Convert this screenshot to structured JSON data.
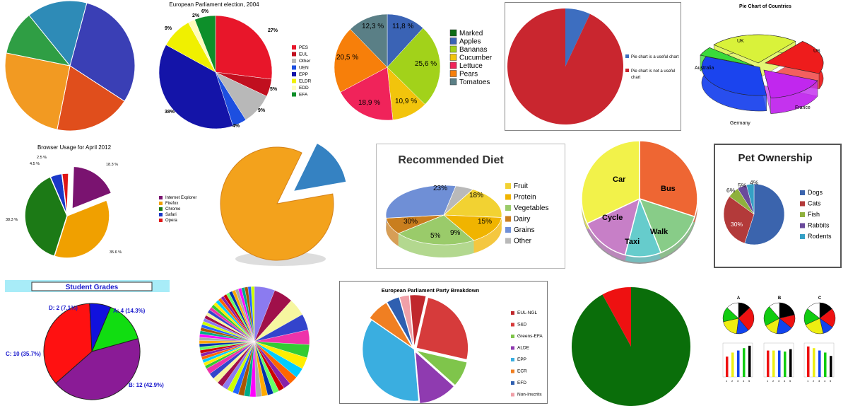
{
  "colors": {
    "red": "#e11f26",
    "darkred": "#c0282d",
    "blue": "#1f33c7",
    "green": "#0a7a1a",
    "yellow": "#ffff00",
    "grey": "#b5b5b5",
    "orange": "#f79820"
  },
  "chart_data": [
    {
      "id": "p1",
      "type": "pie",
      "title": "",
      "values": [
        30,
        19,
        25,
        11,
        15
      ],
      "colors": [
        "#3a3fb5",
        "#e04e1c",
        "#f29a22",
        "#2f9e44",
        "#2e8bb7"
      ],
      "categories": [
        "",
        "",
        "",
        "",
        ""
      ]
    },
    {
      "id": "p2",
      "type": "pie",
      "title": "European Parliament election, 2004",
      "categories": [
        "PES",
        "EUL",
        "Other",
        "UEN",
        "EPP",
        "ELDR",
        "EDD",
        "EFA"
      ],
      "values": [
        27,
        5,
        9,
        4,
        38,
        9,
        2,
        6
      ],
      "data_labels": [
        "27%",
        "5%",
        "9%",
        "4%",
        "38%",
        "9%",
        "2%",
        "6%"
      ],
      "colors": [
        "#e8162a",
        "#c10f1f",
        "#b8b8b8",
        "#1d4fe0",
        "#1414a8",
        "#f0f000",
        "#fffcbb",
        "#0d8f2a"
      ]
    },
    {
      "id": "p3",
      "type": "pie",
      "title": "",
      "categories": [
        "Marked",
        "Apples",
        "Bananas",
        "Cucumber",
        "Lettuce",
        "Pears",
        "Tomatoes"
      ],
      "values": [
        0,
        11.8,
        25.6,
        10.9,
        18.9,
        20.5,
        12.3
      ],
      "data_labels": [
        "",
        "11,8 %",
        "25,6 %",
        "10,9 %",
        "18,9 %",
        "20,5 %",
        "12,3 %"
      ],
      "colors": [
        "#0c6b14",
        "#3a63b5",
        "#a2d21a",
        "#f2c40c",
        "#f0235a",
        "#f77f0a",
        "#5a7f86"
      ]
    },
    {
      "id": "p4",
      "type": "pie",
      "title": "",
      "categories": [
        "Pie chart is a useful chart",
        "Pie chart is not a useful chart"
      ],
      "values": [
        7,
        93
      ],
      "colors": [
        "#3d6ec0",
        "#c9262f"
      ]
    },
    {
      "id": "p5",
      "type": "pie",
      "title": "Pie Chart of Countries",
      "categories": [
        "US",
        "France",
        "Germany",
        "Australia",
        "UK"
      ],
      "values": [
        20,
        17,
        33,
        5,
        25
      ],
      "colors": [
        "#ee1c1c",
        "#c127ee",
        "#1b44ee",
        "#3ada3a",
        "#d9f23a"
      ]
    },
    {
      "id": "p6",
      "type": "pie",
      "title": "Browser Usage for April 2012",
      "categories": [
        "Internet Explorer",
        "Firefox",
        "Chrome",
        "Safari",
        "Opera"
      ],
      "values": [
        18.3,
        35.6,
        38.3,
        4.5,
        2.5
      ],
      "data_labels": [
        "18.3 %",
        "35.6 %",
        "38.3 %",
        "4.5 %",
        "2.5 %"
      ],
      "colors": [
        "#7a1370",
        "#f0a000",
        "#1c7a16",
        "#1a38c8",
        "#e01515"
      ]
    },
    {
      "id": "p7",
      "type": "pie",
      "title": "",
      "values": [
        85,
        15
      ],
      "colors": [
        "#f3a21c",
        "#3582c2"
      ],
      "categories": [
        "",
        ""
      ]
    },
    {
      "id": "p8",
      "type": "pie",
      "title": "Recommended Diet",
      "categories": [
        "Fruit",
        "Protein",
        "Vegetables",
        "Dairy",
        "Grains",
        "Other"
      ],
      "values": [
        18,
        15,
        23,
        9,
        30,
        5
      ],
      "data_labels": [
        "18%",
        "15%",
        "23%",
        "9%",
        "30%",
        "5%"
      ],
      "colors": [
        "#f2d232",
        "#f0b400",
        "#9acb6a",
        "#c97e1e",
        "#6f8fd6",
        "#b9b9b9"
      ]
    },
    {
      "id": "p9",
      "type": "pie",
      "title": "",
      "categories": [
        "Bus",
        "Walk",
        "Taxi",
        "Cycle",
        "Car"
      ],
      "values": [
        30,
        14,
        10,
        14,
        32
      ],
      "data_labels": [
        "Bus",
        "Walk",
        "Taxi",
        "Cycle",
        "Car"
      ],
      "colors": [
        "#ee6633",
        "#88cc88",
        "#66cccc",
        "#c77fc7",
        "#f2f24a"
      ]
    },
    {
      "id": "p10",
      "type": "pie",
      "title": "Pet Ownership",
      "categories": [
        "Dogs",
        "Cats",
        "Fish",
        "Rabbits",
        "Rodents"
      ],
      "values": [
        55,
        30,
        6,
        5,
        4
      ],
      "data_labels": [
        "55%",
        "30%",
        "6%",
        "5%",
        "4%"
      ],
      "colors": [
        "#3b64ad",
        "#b33a3a",
        "#8fb13d",
        "#6a4a9b",
        "#35a0c5"
      ]
    },
    {
      "id": "p11",
      "type": "pie",
      "title": "Student Grades",
      "categories": [
        "A",
        "B",
        "C",
        "D"
      ],
      "values": [
        4,
        12,
        10,
        2
      ],
      "data_labels": [
        "A: 4  (14.3%)",
        "B: 12  (42.9%)",
        "C: 10  (35.7%)",
        "D: 2  (7.1%)"
      ],
      "colors": [
        "#11dd11",
        "#8a1b96",
        "#ff1111",
        "#1111dd"
      ]
    },
    {
      "id": "p12",
      "type": "pie",
      "title": "",
      "categories": [],
      "values": [],
      "slice_count": 60
    },
    {
      "id": "p13",
      "type": "pie",
      "title": "European Parliament Party Breakdown",
      "categories": [
        "EUL-NGL",
        "S&D",
        "Greens-EFA",
        "ALDE",
        "EPP",
        "ECR",
        "EFD",
        "Non-Inscrits"
      ],
      "values": [
        5,
        25,
        8,
        12,
        36,
        7,
        4,
        3
      ],
      "colors": [
        "#c0282d",
        "#d63b3b",
        "#7fc54b",
        "#8f3bb0",
        "#3aaee0",
        "#f07f22",
        "#2f5fb0",
        "#f0a0a8"
      ]
    },
    {
      "id": "p14",
      "type": "pie",
      "title": "",
      "values": [
        92,
        8
      ],
      "colors": [
        "#0a6e0a",
        "#ee1111"
      ],
      "categories": [
        "",
        ""
      ]
    },
    {
      "id": "p15",
      "type": "small-multiples",
      "titles": [
        "A",
        "B",
        "C"
      ],
      "tick_labels": [
        "1",
        "2",
        "3",
        "4",
        "5"
      ]
    }
  ]
}
